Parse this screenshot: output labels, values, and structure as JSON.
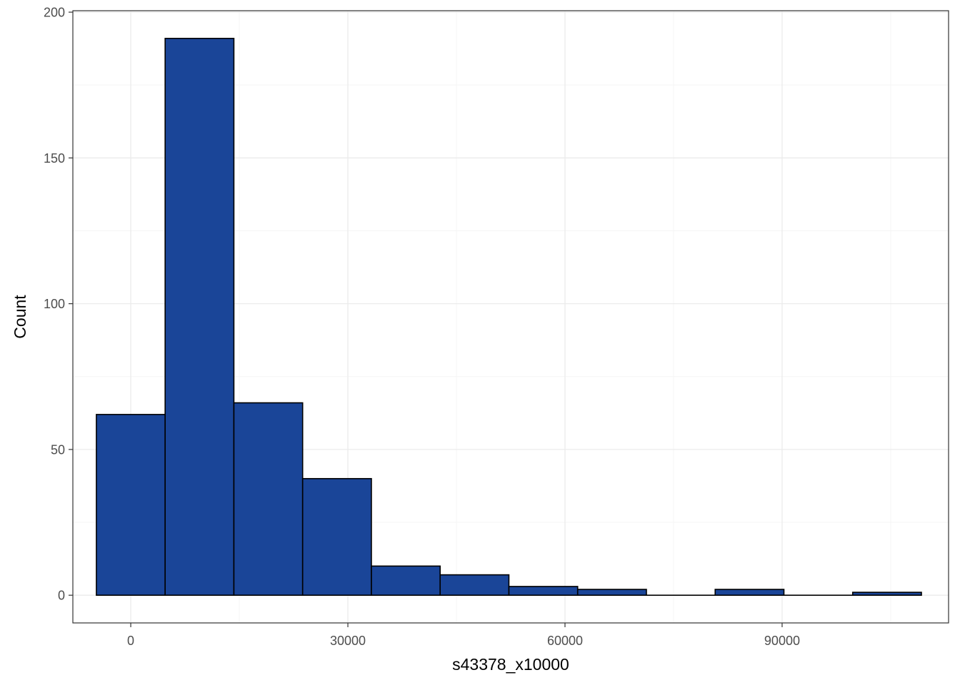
{
  "chart_data": {
    "type": "bar",
    "subtype": "histogram",
    "xlabel": "s43378_x10000",
    "ylabel": "Count",
    "xlim": [
      -8000,
      113000
    ],
    "ylim": [
      -9.5,
      200.5
    ],
    "x_ticks": [
      0,
      30000,
      60000,
      90000
    ],
    "x_tick_labels": [
      "0",
      "30000",
      "60000",
      "90000"
    ],
    "y_ticks": [
      0,
      50,
      100,
      150,
      200
    ],
    "y_tick_labels": [
      "0",
      "50",
      "100",
      "150",
      "200"
    ],
    "bins": [
      {
        "x0": -4750,
        "x1": 4750,
        "count": 62
      },
      {
        "x0": 4750,
        "x1": 14250,
        "count": 191
      },
      {
        "x0": 14250,
        "x1": 23750,
        "count": 66
      },
      {
        "x0": 23750,
        "x1": 33250,
        "count": 40
      },
      {
        "x0": 33250,
        "x1": 42750,
        "count": 10
      },
      {
        "x0": 42750,
        "x1": 52250,
        "count": 7
      },
      {
        "x0": 52250,
        "x1": 61750,
        "count": 3
      },
      {
        "x0": 61750,
        "x1": 71250,
        "count": 2
      },
      {
        "x0": 71250,
        "x1": 80750,
        "count": 0
      },
      {
        "x0": 80750,
        "x1": 90250,
        "count": 2
      },
      {
        "x0": 90250,
        "x1": 99750,
        "count": 0
      },
      {
        "x0": 99750,
        "x1": 109250,
        "count": 1
      }
    ],
    "grid": true,
    "legend": "none",
    "colors": {
      "bar_fill": "#1A4598",
      "bar_stroke": "#000000",
      "panel_border": "#333333",
      "grid_major": "#EBEBEB",
      "grid_minor": "#F5F5F5",
      "tick_text": "#4D4D4D",
      "title_text": "#000000"
    }
  }
}
